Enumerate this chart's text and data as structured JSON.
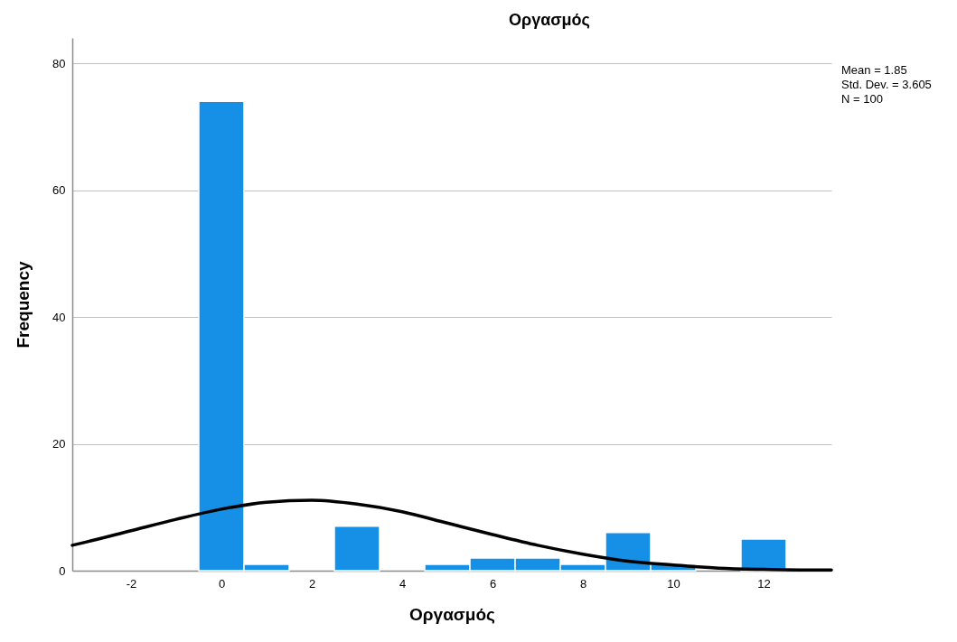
{
  "chart_data": {
    "type": "histogram",
    "title": "Οργασμός",
    "xlabel": "Οργασμός",
    "ylabel": "Frequency",
    "annotations": [
      "Mean = 1.85",
      "Std. Dev. = 3.605",
      "N = 100"
    ],
    "bins": [
      -0.5,
      0.5,
      1.5,
      2.5,
      3.5,
      4.5,
      5.5,
      6.5,
      7.5,
      8.5,
      9.5,
      10.5,
      11.5,
      12.5
    ],
    "series": [
      {
        "color": "#1590e6",
        "values": [
          74,
          1,
          0,
          7,
          0,
          1,
          2,
          2,
          1,
          6,
          1,
          0,
          5
        ]
      },
      {
        "type": "line",
        "color": "#000000",
        "x": [
          -3.3,
          -3,
          -2,
          -1,
          0,
          1,
          2,
          3,
          4,
          5,
          6,
          7,
          8,
          9,
          10,
          11,
          12,
          13,
          13.5
        ],
        "values": [
          4.0,
          4.5,
          6.3,
          8.1,
          9.7,
          10.8,
          11.1,
          10.5,
          9.3,
          7.5,
          5.7,
          4.0,
          2.6,
          1.5,
          0.9,
          0.4,
          0.2,
          0.1,
          0.1
        ]
      }
    ],
    "xlim": [
      -3.3,
      13.5
    ],
    "xticks": [
      -2,
      0,
      2,
      4,
      6,
      8,
      10,
      12
    ],
    "ylim": [
      0,
      84
    ],
    "yticks": [
      0,
      20,
      40,
      60,
      80
    ],
    "grid": "y"
  }
}
